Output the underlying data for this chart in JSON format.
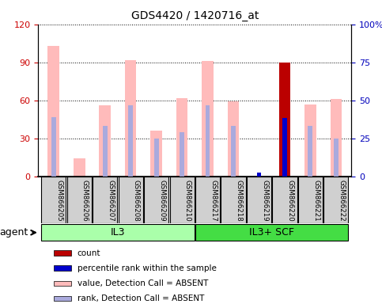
{
  "title": "GDS4420 / 1420716_at",
  "samples": [
    "GSM866205",
    "GSM866206",
    "GSM866207",
    "GSM866208",
    "GSM866209",
    "GSM866210",
    "GSM866217",
    "GSM866218",
    "GSM866219",
    "GSM866220",
    "GSM866221",
    "GSM866222"
  ],
  "groups": [
    {
      "label": "IL3",
      "start": 0,
      "end": 5,
      "color": "#aaffaa"
    },
    {
      "label": "IL3+ SCF",
      "start": 6,
      "end": 11,
      "color": "#44dd44"
    }
  ],
  "value_absent": [
    103,
    14,
    56,
    92,
    36,
    62,
    91,
    59,
    0,
    0,
    57,
    61
  ],
  "rank_absent": [
    47,
    0,
    40,
    56,
    30,
    35,
    56,
    40,
    0,
    0,
    40,
    30
  ],
  "count_present": [
    0,
    0,
    0,
    0,
    0,
    0,
    0,
    0,
    0,
    90,
    0,
    0
  ],
  "rank_present": [
    0,
    0,
    0,
    0,
    0,
    0,
    0,
    0,
    3,
    46,
    0,
    0
  ],
  "ylim_left": [
    0,
    120
  ],
  "ylim_right": [
    0,
    100
  ],
  "yticks_left": [
    0,
    30,
    60,
    90,
    120
  ],
  "yticks_right": [
    0,
    25,
    50,
    75,
    100
  ],
  "ytick_labels_left": [
    "0",
    "30",
    "60",
    "90",
    "120"
  ],
  "ytick_labels_right": [
    "0",
    "25",
    "50",
    "75",
    "100%"
  ],
  "color_count": "#bb0000",
  "color_rank_present": "#0000cc",
  "color_value_absent": "#ffbbbb",
  "color_rank_absent": "#aaaadd",
  "legend_items": [
    {
      "color": "#bb0000",
      "label": "count"
    },
    {
      "color": "#0000cc",
      "label": "percentile rank within the sample"
    },
    {
      "color": "#ffbbbb",
      "label": "value, Detection Call = ABSENT"
    },
    {
      "color": "#aaaadd",
      "label": "rank, Detection Call = ABSENT"
    }
  ],
  "axis_color_left": "#cc0000",
  "axis_color_right": "#0000bb",
  "agent_label": "agent"
}
